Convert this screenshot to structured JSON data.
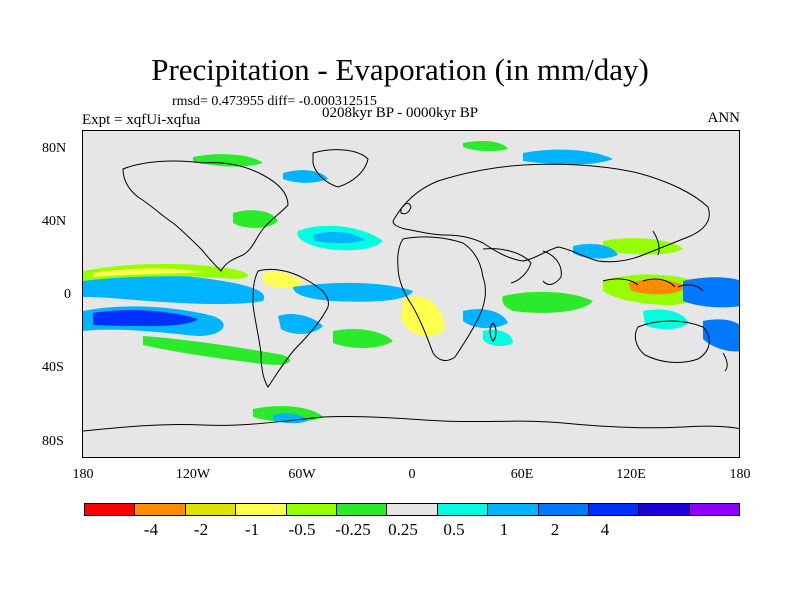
{
  "title": "Precipitation - Evaporation (in mm/day)",
  "stats": "rmsd= 0.473955 diff= -0.000312515",
  "experiment": "Expt = xqfUi-xqfua",
  "period": "0208kyr BP - 0000kyr BP",
  "season": "ANN",
  "lat_labels": [
    "80N",
    "40N",
    "0",
    "40S",
    "80S"
  ],
  "lon_labels": [
    "180",
    "120W",
    "60W",
    "0",
    "60E",
    "120E",
    "180"
  ],
  "colorbar": {
    "colors": [
      "#ff0000",
      "#ff8c00",
      "#e1e100",
      "#ffff4f",
      "#96ff00",
      "#2bea2b",
      "#e6e6e6",
      "#00ffe1",
      "#00b4ff",
      "#0078ff",
      "#0030ff",
      "#1e00dc",
      "#8c00ff"
    ],
    "labels": [
      "-4",
      "-2",
      "-1",
      "-0.5",
      "-0.25",
      "0.25",
      "0.5",
      "1",
      "2",
      "4"
    ]
  },
  "colors": {
    "background": "#e6e6e6",
    "coastline": "#000000",
    "positive_strong": "#0030ff",
    "positive_mid": "#0078ff",
    "positive_light": "#00b4ff",
    "positive_weak": "#00ffe1",
    "negative_weak": "#2bea2b",
    "negative_light": "#96ff00",
    "negative_mid": "#ffff4f",
    "negative_strong": "#ff8c00"
  }
}
